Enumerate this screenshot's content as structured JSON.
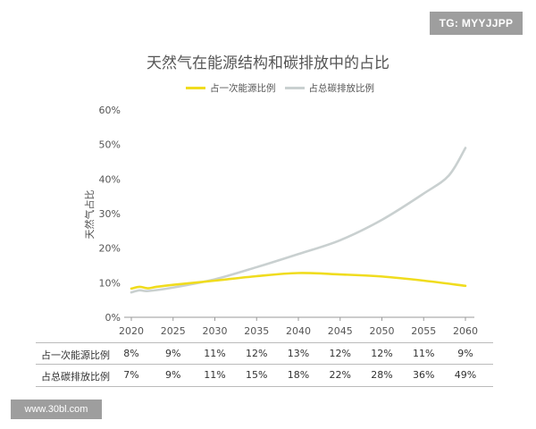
{
  "badge": "TG: MYYJJPP",
  "watermark": "www.30bl.com",
  "chart_data": {
    "type": "line",
    "title": "天然气在能源结构和碳排放中的占比",
    "ylabel": "天然气占比",
    "xlabel": "",
    "x": [
      2020,
      2025,
      2030,
      2035,
      2040,
      2045,
      2050,
      2055,
      2060
    ],
    "x_tick_labels": [
      "2020",
      "2025",
      "2030",
      "2035",
      "2040",
      "2045",
      "2050",
      "2055",
      "2060"
    ],
    "y_tick_labels": [
      "0%",
      "10%",
      "20%",
      "30%",
      "40%",
      "50%",
      "60%"
    ],
    "ylim": [
      0,
      60
    ],
    "legend_position": "top-center",
    "grid": false,
    "series": [
      {
        "name": "占一次能源比例",
        "color": "#f0dc1e",
        "values": [
          8,
          9,
          11,
          12,
          13,
          12,
          12,
          11,
          9
        ],
        "curve_x": [
          2020,
          2021,
          2022,
          2023,
          2025,
          2030,
          2035,
          2040,
          2045,
          2050,
          2055,
          2060
        ],
        "curve_y": [
          8.3,
          8.8,
          8.4,
          8.8,
          9.4,
          10.6,
          11.9,
          12.8,
          12.4,
          11.8,
          10.6,
          9.1
        ]
      },
      {
        "name": "占总碳排放比例",
        "color": "#c9d0d0",
        "values": [
          7,
          9,
          11,
          15,
          18,
          22,
          28,
          36,
          49
        ],
        "curve_x": [
          2020,
          2021,
          2022,
          2025,
          2030,
          2035,
          2040,
          2045,
          2050,
          2055,
          2058,
          2060
        ],
        "curve_y": [
          7.2,
          7.8,
          7.6,
          8.6,
          11.0,
          14.5,
          18.3,
          22.3,
          28.2,
          35.8,
          41.0,
          49.0
        ]
      }
    ],
    "table": {
      "rows": [
        {
          "label": "占一次能源比例",
          "values": [
            "8%",
            "9%",
            "11%",
            "12%",
            "13%",
            "12%",
            "12%",
            "11%",
            "9%"
          ]
        },
        {
          "label": "占总碳排放比例",
          "values": [
            "7%",
            "9%",
            "11%",
            "15%",
            "18%",
            "22%",
            "28%",
            "36%",
            "49%"
          ]
        }
      ]
    }
  }
}
